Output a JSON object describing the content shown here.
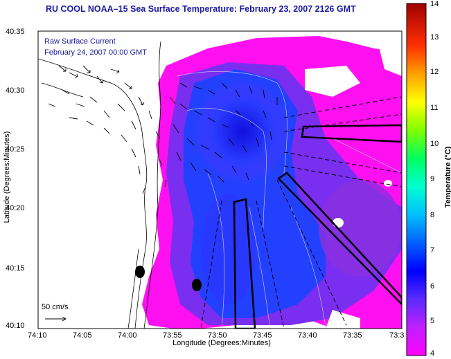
{
  "title": "RU COOL  NOAA–15  Sea Surface Temperature:  February 23, 2007 2126 GMT",
  "current_label_line1": "Raw Surface Current",
  "current_label_line2": "February 24, 2007 00:00 GMT",
  "axes": {
    "xlabel": "Longitude (Degrees:Minutes)",
    "ylabel": "Latitude (Degrees:Minutes)",
    "xticks": [
      "74:10",
      "74:05",
      "74:00",
      "73:55",
      "73:50",
      "73:45",
      "73:40",
      "73:35",
      "73:3"
    ],
    "yticks": [
      "40:35",
      "40:30",
      "40:25",
      "40:20",
      "40:15",
      "40:10"
    ]
  },
  "colorbar": {
    "label": "Temperature (°C)",
    "ticks": [
      "14",
      "13",
      "12",
      "11",
      "10",
      "9",
      "8",
      "7",
      "6",
      "5",
      "4"
    ],
    "range": [
      4,
      14
    ],
    "colors": [
      "#ff00ff",
      "#8a2be2",
      "#0000ff",
      "#00bfff",
      "#00ffff",
      "#00ff80",
      "#ffff00",
      "#ff8c00",
      "#ff0000",
      "#8b0000"
    ]
  },
  "scale": {
    "label": "50 cm/s"
  },
  "colors": {
    "title": "#1a1aa0",
    "warm_water": "#ff00ff",
    "cold_water": "#1a1aff",
    "land": "#ffffff"
  }
}
